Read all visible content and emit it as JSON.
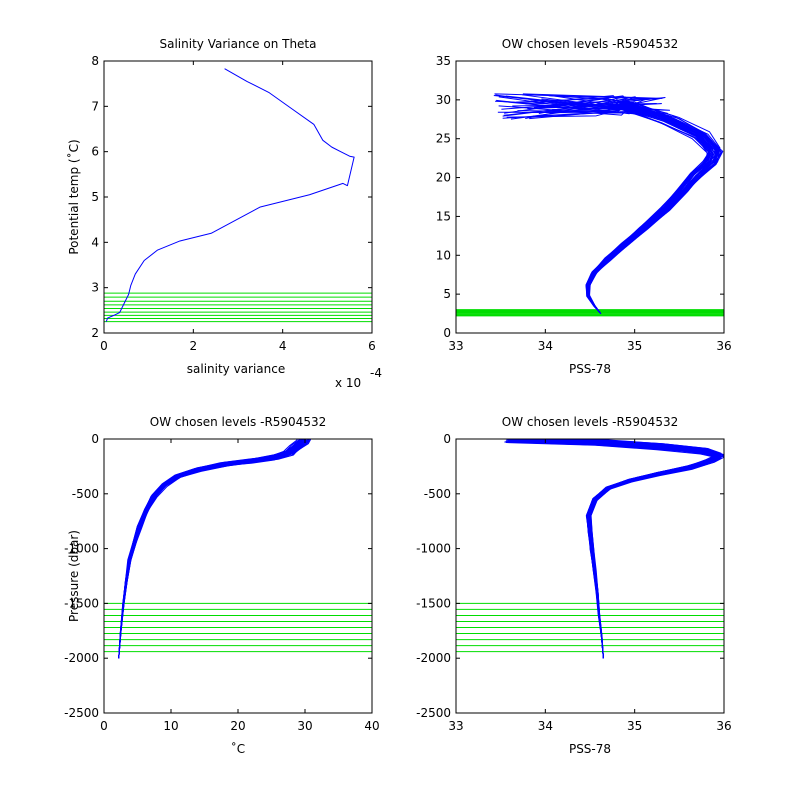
{
  "figure": {
    "background": "#ffffff"
  },
  "colors": {
    "profile": "#0000ff",
    "levels": "#00dd00",
    "axes": "#000000"
  },
  "chart_data": [
    {
      "id": "p1",
      "type": "line",
      "title": "Salinity Variance on Theta",
      "xlabel": "salinity variance",
      "ylabel": "Potential temp (˚C)",
      "x_multiplier": "x 10",
      "x_multiplier_exp": "-4",
      "xlim": [
        0,
        6
      ],
      "ylim": [
        2,
        8
      ],
      "xticks": [
        0,
        2,
        4,
        6
      ],
      "yticks": [
        2,
        3,
        4,
        5,
        6,
        7,
        8
      ],
      "grid": false,
      "series": [
        {
          "x": [
            2.7,
            3.2,
            3.7,
            4.2,
            4.7,
            4.9,
            5.1,
            5.3,
            5.5,
            5.6,
            5.45,
            5.35,
            4.6,
            3.5,
            2.4,
            1.7,
            1.2,
            0.9,
            0.7,
            0.6,
            0.55,
            0.45,
            0.35,
            0.2,
            0.08,
            0.05
          ],
          "y": [
            7.83,
            7.55,
            7.3,
            6.95,
            6.6,
            6.25,
            6.1,
            6.0,
            5.9,
            5.88,
            5.25,
            5.3,
            5.05,
            4.78,
            4.2,
            4.03,
            3.83,
            3.6,
            3.3,
            3.05,
            2.85,
            2.65,
            2.45,
            2.38,
            2.33,
            2.25
          ]
        }
      ],
      "levels": {
        "axis": "y",
        "values": [
          2.25,
          2.32,
          2.39,
          2.46,
          2.54,
          2.62,
          2.7,
          2.79,
          2.88
        ]
      }
    },
    {
      "id": "p2",
      "type": "line",
      "title": "OW chosen levels -R5904532",
      "xlabel": "PSS-78",
      "ylabel": "",
      "xlim": [
        33,
        36
      ],
      "ylim": [
        0,
        35
      ],
      "xticks": [
        33,
        34,
        35,
        36
      ],
      "yticks": [
        0,
        5,
        10,
        15,
        20,
        25,
        30,
        35
      ],
      "grid": false,
      "series": [
        {
          "x": [
            34.62,
            34.55,
            34.48,
            34.48,
            34.55,
            34.7,
            34.9,
            35.1,
            35.35,
            35.55,
            35.7,
            35.85,
            35.9,
            35.75,
            35.4,
            34.9,
            34.2,
            33.7
          ],
          "y": [
            2.5,
            3.5,
            4.8,
            6.2,
            7.8,
            9.5,
            11.5,
            13.5,
            16.0,
            18.5,
            20.5,
            22.0,
            23.5,
            25.5,
            27.5,
            29.5,
            30.0,
            30.0
          ]
        }
      ],
      "profile_band": {
        "count": 40,
        "x_spread": 0.12,
        "y_spread": 0.6,
        "surface_x_range": [
          33.4,
          34.1
        ],
        "surface_y_range": [
          27.5,
          30.8
        ]
      },
      "levels": {
        "axis": "y",
        "values": [
          2.2,
          2.3,
          2.4,
          2.5,
          2.6,
          2.7,
          2.8,
          2.9,
          3.0
        ]
      }
    },
    {
      "id": "p3",
      "type": "line",
      "title": "OW chosen levels -R5904532",
      "xlabel": "˚C",
      "ylabel": "Pressure (dbar)",
      "xlim": [
        0,
        40
      ],
      "ylim": [
        -2500,
        0
      ],
      "xticks": [
        0,
        10,
        20,
        30,
        40
      ],
      "yticks": [
        -2500,
        -2000,
        -1500,
        -1000,
        -500,
        0
      ],
      "grid": false,
      "series": [
        {
          "x": [
            2.2,
            2.5,
            2.9,
            3.3,
            3.8,
            4.5,
            5.3,
            6.3,
            7.5,
            9.0,
            11.0,
            14.0,
            18.0,
            22.0,
            25.5,
            27.5,
            28.5,
            29.5,
            30.0
          ],
          "y": [
            -2000,
            -1750,
            -1500,
            -1300,
            -1100,
            -950,
            -800,
            -650,
            -520,
            -420,
            -340,
            -280,
            -230,
            -200,
            -170,
            -130,
            -80,
            -30,
            0
          ]
        }
      ],
      "profile_band": {
        "count": 40,
        "x_spread": 0.9,
        "y_spread": 25
      },
      "levels": {
        "axis": "y",
        "values": [
          -1500,
          -1555,
          -1610,
          -1665,
          -1720,
          -1775,
          -1830,
          -1885,
          -1940
        ]
      }
    },
    {
      "id": "p4",
      "type": "line",
      "title": "OW chosen levels -R5904532",
      "xlabel": "PSS-78",
      "ylabel": "",
      "xlim": [
        33,
        36
      ],
      "ylim": [
        -2500,
        0
      ],
      "xticks": [
        33,
        34,
        35,
        36
      ],
      "yticks": [
        -2500,
        -2000,
        -1500,
        -1000,
        -500,
        0
      ],
      "grid": false,
      "series": [
        {
          "x": [
            34.65,
            34.63,
            34.6,
            34.58,
            34.55,
            34.52,
            34.5,
            34.48,
            34.55,
            34.7,
            34.95,
            35.25,
            35.6,
            35.85,
            35.95,
            35.8,
            35.3,
            34.6,
            33.6
          ],
          "y": [
            -2000,
            -1800,
            -1600,
            -1400,
            -1200,
            -1000,
            -850,
            -700,
            -550,
            -450,
            -380,
            -320,
            -260,
            -200,
            -150,
            -110,
            -70,
            -30,
            0
          ]
        }
      ],
      "profile_band": {
        "count": 40,
        "x_spread": 0.07,
        "y_spread": 25
      },
      "levels": {
        "axis": "y",
        "values": [
          -1500,
          -1555,
          -1610,
          -1665,
          -1720,
          -1775,
          -1830,
          -1885,
          -1940
        ]
      }
    }
  ]
}
